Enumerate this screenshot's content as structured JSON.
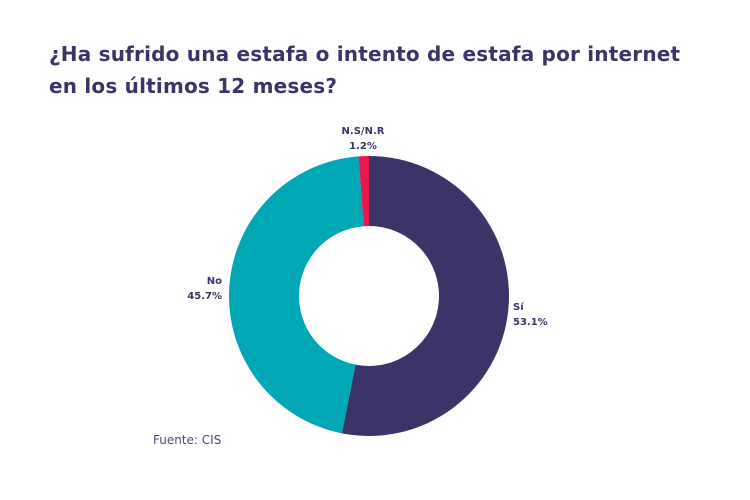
{
  "chart_data": {
    "type": "pie",
    "donut": true,
    "title": "¿Ha sufrido una estafa o intento de estafa por internet en los últimos 12 meses?",
    "slices": [
      {
        "label": "Sí",
        "value": 53.1,
        "display": "53.1%",
        "color": "#3a3468"
      },
      {
        "label": "No",
        "value": 45.7,
        "display": "45.7%",
        "color": "#00a8b5"
      },
      {
        "label": "N.S/N.R",
        "value": 1.2,
        "display": "1.2%",
        "color": "#e8194f"
      }
    ],
    "source": "Fuente: CIS"
  }
}
